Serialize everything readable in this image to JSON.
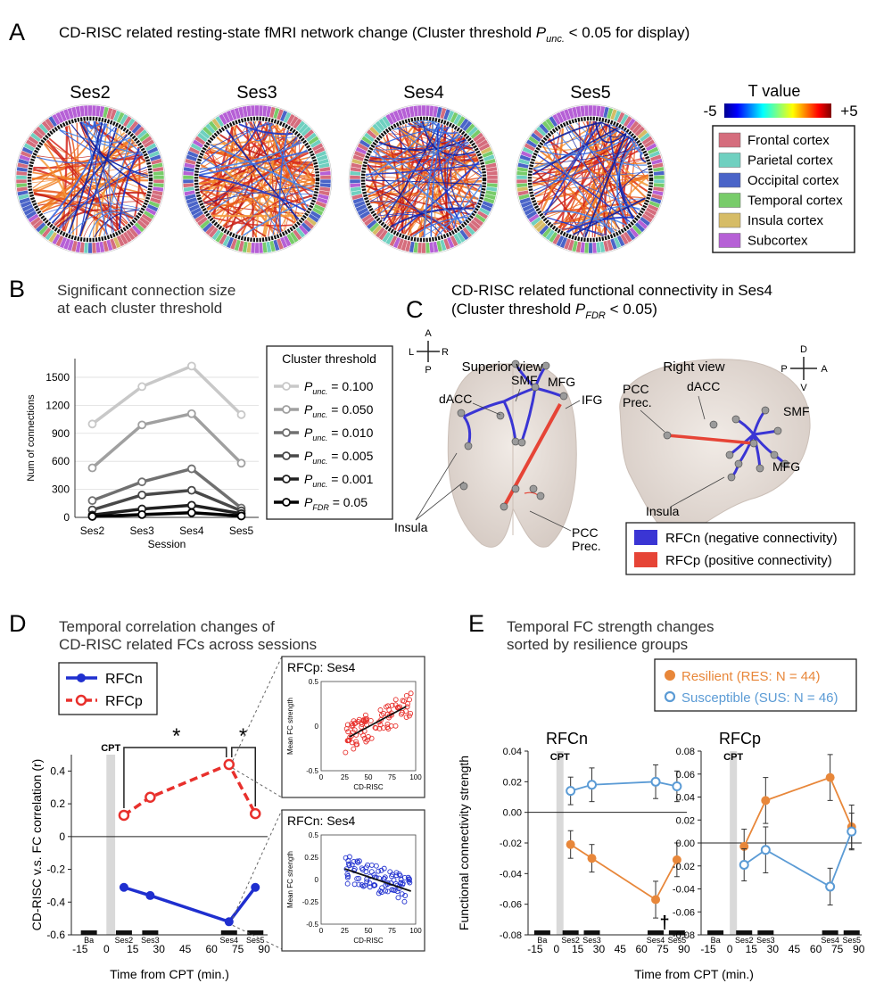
{
  "panels": {
    "A": {
      "letter": "A",
      "title_main": "CD-RISC related resting-state fMRI network change (Cluster threshold ",
      "title_p": "P",
      "title_sub": "unc.",
      "title_end": " < 0.05 for display)",
      "sessions": [
        "Ses2",
        "Ses3",
        "Ses4",
        "Ses5"
      ],
      "colorbar": {
        "title": "T value",
        "min_label": "-5",
        "max_label": "+5",
        "min": -5,
        "max": 5
      },
      "legend": [
        {
          "label": "Frontal cortex",
          "color": "#d56d7d"
        },
        {
          "label": "Parietal cortex",
          "color": "#6fd0c0"
        },
        {
          "label": "Occipital cortex",
          "color": "#4a64c8"
        },
        {
          "label": "Temporal cortex",
          "color": "#78cc6a"
        },
        {
          "label": "Insula cortex",
          "color": "#d6bc66"
        },
        {
          "label": "Subcortex",
          "color": "#b660d6"
        }
      ]
    },
    "B": {
      "letter": "B",
      "title_line1": "Significant connection size",
      "title_line2": "at each cluster threshold",
      "legend_title": "Cluster threshold",
      "p_letter": "P",
      "thresholds": [
        {
          "sub": "unc.",
          "value": " = 0.100"
        },
        {
          "sub": "unc.",
          "value": " = 0.050"
        },
        {
          "sub": "unc.",
          "value": " = 0.010"
        },
        {
          "sub": "unc.",
          "value": " = 0.005"
        },
        {
          "sub": "unc.",
          "value": " = 0.001"
        },
        {
          "sub": "FDR",
          "value": " = 0.05"
        }
      ]
    },
    "C": {
      "letter": "C",
      "title_line1": "CD-RISC related functional connectivity in Ses4",
      "title_line2_pre": "(Cluster threshold ",
      "title_p": "P",
      "title_sub": "FDR",
      "title_end": " < 0.05)",
      "superior_view": "Superior view",
      "right_view": "Right view",
      "compass_sup": {
        "A": "A",
        "P": "P",
        "L": "L",
        "R": "R"
      },
      "compass_right": {
        "D": "D",
        "V": "V",
        "P": "P",
        "A": "A"
      },
      "labels_sup": [
        "dACC",
        "SMF",
        "MFG",
        "IFG",
        "Insula",
        "PCC",
        "Prec."
      ],
      "labels_right": [
        "PCC",
        "Prec.",
        "dACC",
        "SMF",
        "MFG",
        "Insula"
      ],
      "legend": [
        {
          "label": "RFCn (negative connectivity)",
          "color": "#3a35d4"
        },
        {
          "label": "RFCp (positive connectivity)",
          "color": "#e64436"
        }
      ]
    },
    "D": {
      "letter": "D",
      "title_line1": "Temporal correlation changes of",
      "title_line2": "CD-RISC related FCs across sessions",
      "legend": [
        {
          "label": "RFCn",
          "color": "#1f2fcf"
        },
        {
          "label": "RFCp",
          "color": "#e8302c"
        }
      ],
      "cpt": "CPT",
      "star": "*",
      "inset_p": {
        "title": "RFCp: Ses4",
        "color": "#e8302c"
      },
      "inset_n": {
        "title": "RFCn: Ses4",
        "color": "#1f2fcf"
      },
      "inset_xlabel": "CD-RISC",
      "inset_ylabel": "Mean FC strength"
    },
    "E": {
      "letter": "E",
      "title_line1": "Temporal FC strength changes",
      "title_line2": "sorted by resilience groups",
      "groups": [
        {
          "label": "Resilient (RES: N = 44)",
          "color": "#e8873a"
        },
        {
          "label": "Susceptible (SUS: N = 46)",
          "color": "#5b9bd5"
        }
      ],
      "cpt": "CPT",
      "dagger": "†",
      "ylabel": "Functional connectivity strength",
      "xlabel": "Time from CPT (min.)"
    }
  },
  "chart_data": [
    {
      "id": "B",
      "type": "line",
      "title": "Significant connection size at each cluster threshold",
      "xlabel": "Session",
      "ylabel": "Num of connections",
      "categories": [
        "Ses2",
        "Ses3",
        "Ses4",
        "Ses5"
      ],
      "ylim": [
        0,
        1700
      ],
      "yticks": [
        0,
        300,
        600,
        900,
        1200,
        1500
      ],
      "series": [
        {
          "name": "Punc. = 0.100",
          "color": "#c8c8c8",
          "values": [
            1000,
            1400,
            1620,
            1100
          ]
        },
        {
          "name": "Punc. = 0.050",
          "color": "#a0a0a0",
          "values": [
            530,
            990,
            1110,
            580
          ]
        },
        {
          "name": "Punc. = 0.010",
          "color": "#707070",
          "values": [
            180,
            380,
            520,
            100
          ]
        },
        {
          "name": "Punc. = 0.005",
          "color": "#484848",
          "values": [
            80,
            240,
            290,
            70
          ]
        },
        {
          "name": "Punc. = 0.001",
          "color": "#202020",
          "values": [
            25,
            90,
            130,
            40
          ]
        },
        {
          "name": "PFDR = 0.05",
          "color": "#000000",
          "values": [
            10,
            30,
            50,
            15
          ]
        }
      ]
    },
    {
      "id": "D",
      "type": "line",
      "title": "Temporal correlation changes of CD-RISC related FCs across sessions",
      "xlabel": "Time from CPT (min.)",
      "ylabel": "CD-RISC v.s. FC correlation (r)",
      "xlim": [
        -20,
        92
      ],
      "ylim": [
        -0.6,
        0.5
      ],
      "xticks": [
        -15,
        0,
        15,
        30,
        45,
        60,
        75,
        90
      ],
      "yticks": [
        -0.6,
        -0.4,
        -0.2,
        0,
        0.2,
        0.4
      ],
      "session_labels": [
        "Ba",
        "Ses2",
        "Ses3",
        "Ses4",
        "Ses5"
      ],
      "session_times": [
        -10,
        10,
        25,
        70,
        85
      ],
      "series": [
        {
          "name": "RFCp",
          "x": [
            10,
            25,
            70,
            85
          ],
          "y": [
            0.13,
            0.24,
            0.44,
            0.14
          ]
        },
        {
          "name": "RFCn",
          "x": [
            10,
            25,
            70,
            85
          ],
          "y": [
            -0.31,
            -0.36,
            -0.52,
            -0.31
          ]
        }
      ]
    },
    {
      "id": "D-inset-RFCp",
      "type": "scatter",
      "title": "RFCp: Ses4",
      "xlabel": "CD-RISC",
      "ylabel": "Mean FC strength",
      "xlim": [
        0,
        100
      ],
      "ylim": [
        -0.5,
        0.5
      ],
      "xticks": [
        0,
        25,
        50,
        75,
        100
      ],
      "yticks": [
        -0.5,
        0,
        0.5
      ],
      "fit_line": [
        [
          30,
          -0.12
        ],
        [
          90,
          0.22
        ]
      ]
    },
    {
      "id": "D-inset-RFCn",
      "type": "scatter",
      "title": "RFCn: Ses4",
      "xlabel": "CD-RISC",
      "ylabel": "Mean FC strength",
      "xlim": [
        0,
        100
      ],
      "ylim": [
        -0.5,
        0.5
      ],
      "xticks": [
        0,
        25,
        50,
        75,
        100
      ],
      "yticks": [
        -0.5,
        -0.25,
        0,
        0.25,
        0.5
      ],
      "fit_line": [
        [
          25,
          0.12
        ],
        [
          95,
          -0.13
        ]
      ]
    },
    {
      "id": "E-RFCn",
      "type": "line",
      "title": "RFCn",
      "xlabel": "Time from CPT (min.)",
      "ylabel": "Functional connectivity strength",
      "xlim": [
        -20,
        92
      ],
      "ylim": [
        -0.08,
        0.04
      ],
      "xticks": [
        -15,
        0,
        15,
        30,
        45,
        60,
        75,
        90
      ],
      "yticks": [
        -0.08,
        -0.06,
        -0.04,
        -0.02,
        0,
        0.02,
        0.04
      ],
      "session_labels": [
        "Ba",
        "Ses2",
        "Ses3",
        "Ses4",
        "Ses5"
      ],
      "session_times": [
        -10,
        10,
        25,
        70,
        85
      ],
      "series": [
        {
          "name": "Resilient",
          "x": [
            10,
            25,
            70,
            85
          ],
          "y": [
            -0.021,
            -0.03,
            -0.057,
            -0.031
          ],
          "err": [
            0.009,
            0.009,
            0.012,
            0.011
          ]
        },
        {
          "name": "Susceptible",
          "x": [
            10,
            25,
            70,
            85
          ],
          "y": [
            0.014,
            0.018,
            0.02,
            0.017
          ],
          "err": [
            0.009,
            0.011,
            0.011,
            0.01
          ]
        }
      ]
    },
    {
      "id": "E-RFCp",
      "type": "line",
      "title": "RFCp",
      "xlabel": "Time from CPT (min.)",
      "xlim": [
        -20,
        92
      ],
      "ylim": [
        -0.08,
        0.08
      ],
      "xticks": [
        -15,
        0,
        15,
        30,
        45,
        60,
        75,
        90
      ],
      "yticks": [
        -0.08,
        -0.06,
        -0.04,
        -0.02,
        0,
        0.02,
        0.04,
        0.06,
        0.08
      ],
      "session_labels": [
        "Ba",
        "Ses2",
        "Ses3",
        "Ses4",
        "Ses5"
      ],
      "session_times": [
        -10,
        10,
        25,
        70,
        85
      ],
      "series": [
        {
          "name": "Resilient",
          "x": [
            10,
            25,
            70,
            85
          ],
          "y": [
            -0.003,
            0.037,
            0.057,
            0.014
          ],
          "err": [
            0.015,
            0.02,
            0.02,
            0.019
          ]
        },
        {
          "name": "Susceptible",
          "x": [
            10,
            25,
            70,
            85
          ],
          "y": [
            -0.019,
            -0.006,
            -0.038,
            0.01
          ],
          "err": [
            0.014,
            0.02,
            0.016,
            0.016
          ]
        }
      ]
    }
  ]
}
